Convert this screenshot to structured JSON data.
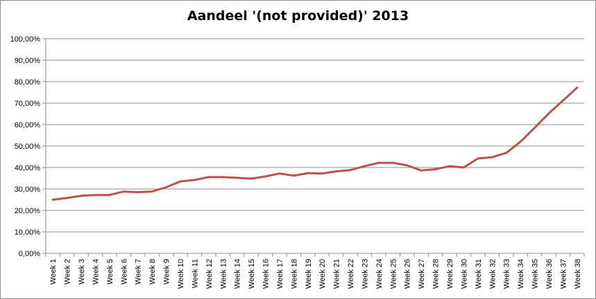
{
  "chart_data": {
    "type": "line",
    "title": "Aandeel '(not provided)' 2013",
    "xlabel": "",
    "ylabel": "",
    "ylim": [
      0,
      100
    ],
    "y_ticks": [
      "0,00%",
      "10,00%",
      "20,00%",
      "30,00%",
      "40,00%",
      "50,00%",
      "60,00%",
      "70,00%",
      "80,00%",
      "90,00%",
      "100,00%"
    ],
    "grid": true,
    "legend": "none",
    "categories": [
      "Week 1",
      "Week 2",
      "Week 3",
      "Week 4",
      "Week 5",
      "Week 6",
      "Week 7",
      "Week 8",
      "Week 9",
      "Week 10",
      "Week 11",
      "Week 12",
      "Week 13",
      "Week 14",
      "Week 15",
      "Week 16",
      "Week 17",
      "Week 18",
      "Week 19",
      "Week 20",
      "Week 21",
      "Week 22",
      "Week 23",
      "Week 24",
      "Week 25",
      "Week 26",
      "Week 27",
      "Week 28",
      "Week 29",
      "Week 30",
      "Week 31",
      "Week 32",
      "Week 33",
      "Week 34",
      "Week 35",
      "Week 36",
      "Week 37",
      "Week 38"
    ],
    "series": [
      {
        "color": "#c0504d",
        "values": [
          25.0,
          25.8,
          26.8,
          27.2,
          27.2,
          28.8,
          28.5,
          28.8,
          30.8,
          33.5,
          34.2,
          35.5,
          35.5,
          35.2,
          34.8,
          35.8,
          37.2,
          36.2,
          37.4,
          37.2,
          38.2,
          38.8,
          40.6,
          42.2,
          42.2,
          41.0,
          38.6,
          39.2,
          40.6,
          40.0,
          44.2,
          44.8,
          46.8,
          52.0,
          58.5,
          65.2,
          71.2,
          77.2
        ]
      }
    ]
  }
}
